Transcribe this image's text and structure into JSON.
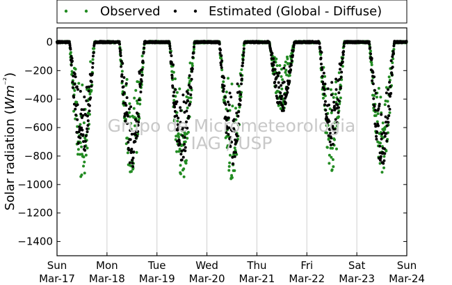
{
  "chart_data": {
    "type": "scatter",
    "title": "",
    "xlabel": "",
    "ylabel": "Solar radiation (Wm⁻²)",
    "ylim": [
      -1500,
      100
    ],
    "xlim": [
      0,
      7
    ],
    "yticks": [
      0,
      -200,
      -400,
      -600,
      -800,
      -1000,
      -1200,
      -1400
    ],
    "yticklabels": [
      "0",
      "−200",
      "−400",
      "−600",
      "−800",
      "−1000",
      "−1200",
      "−1400"
    ],
    "xticks": [
      0,
      1,
      2,
      3,
      4,
      5,
      6,
      7
    ],
    "xticklabels_day": [
      "Sun",
      "Mon",
      "Tue",
      "Wed",
      "Thu",
      "Fri",
      "Sat",
      "Sun"
    ],
    "xticklabels_date": [
      "Mar-17",
      "Mar-18",
      "Mar-19",
      "Mar-20",
      "Mar-21",
      "Mar-22",
      "Mar-23",
      "Mar-24"
    ],
    "grid": "vertical",
    "legend_position": "top-center",
    "watermark": [
      "Grupo de Micrometeorologia",
      "IAG / USP"
    ],
    "series": [
      {
        "name": "Observed",
        "color": "#228b22",
        "days": [
          {
            "day": 0,
            "min": -975
          },
          {
            "day": 1,
            "min": -975
          },
          {
            "day": 2,
            "min": -995
          },
          {
            "day": 3,
            "min": -970
          },
          {
            "day": 4,
            "min": -510
          },
          {
            "day": 5,
            "min": -915
          },
          {
            "day": 6,
            "min": -930
          }
        ]
      },
      {
        "name": "Estimated (Global - Diffuse)",
        "color": "#000000",
        "days": [
          {
            "day": 0,
            "min": -820
          },
          {
            "day": 1,
            "min": -880
          },
          {
            "day": 2,
            "min": -840
          },
          {
            "day": 3,
            "min": -880
          },
          {
            "day": 4,
            "min": -500
          },
          {
            "day": 5,
            "min": -730
          },
          {
            "day": 6,
            "min": -880
          }
        ]
      }
    ]
  }
}
